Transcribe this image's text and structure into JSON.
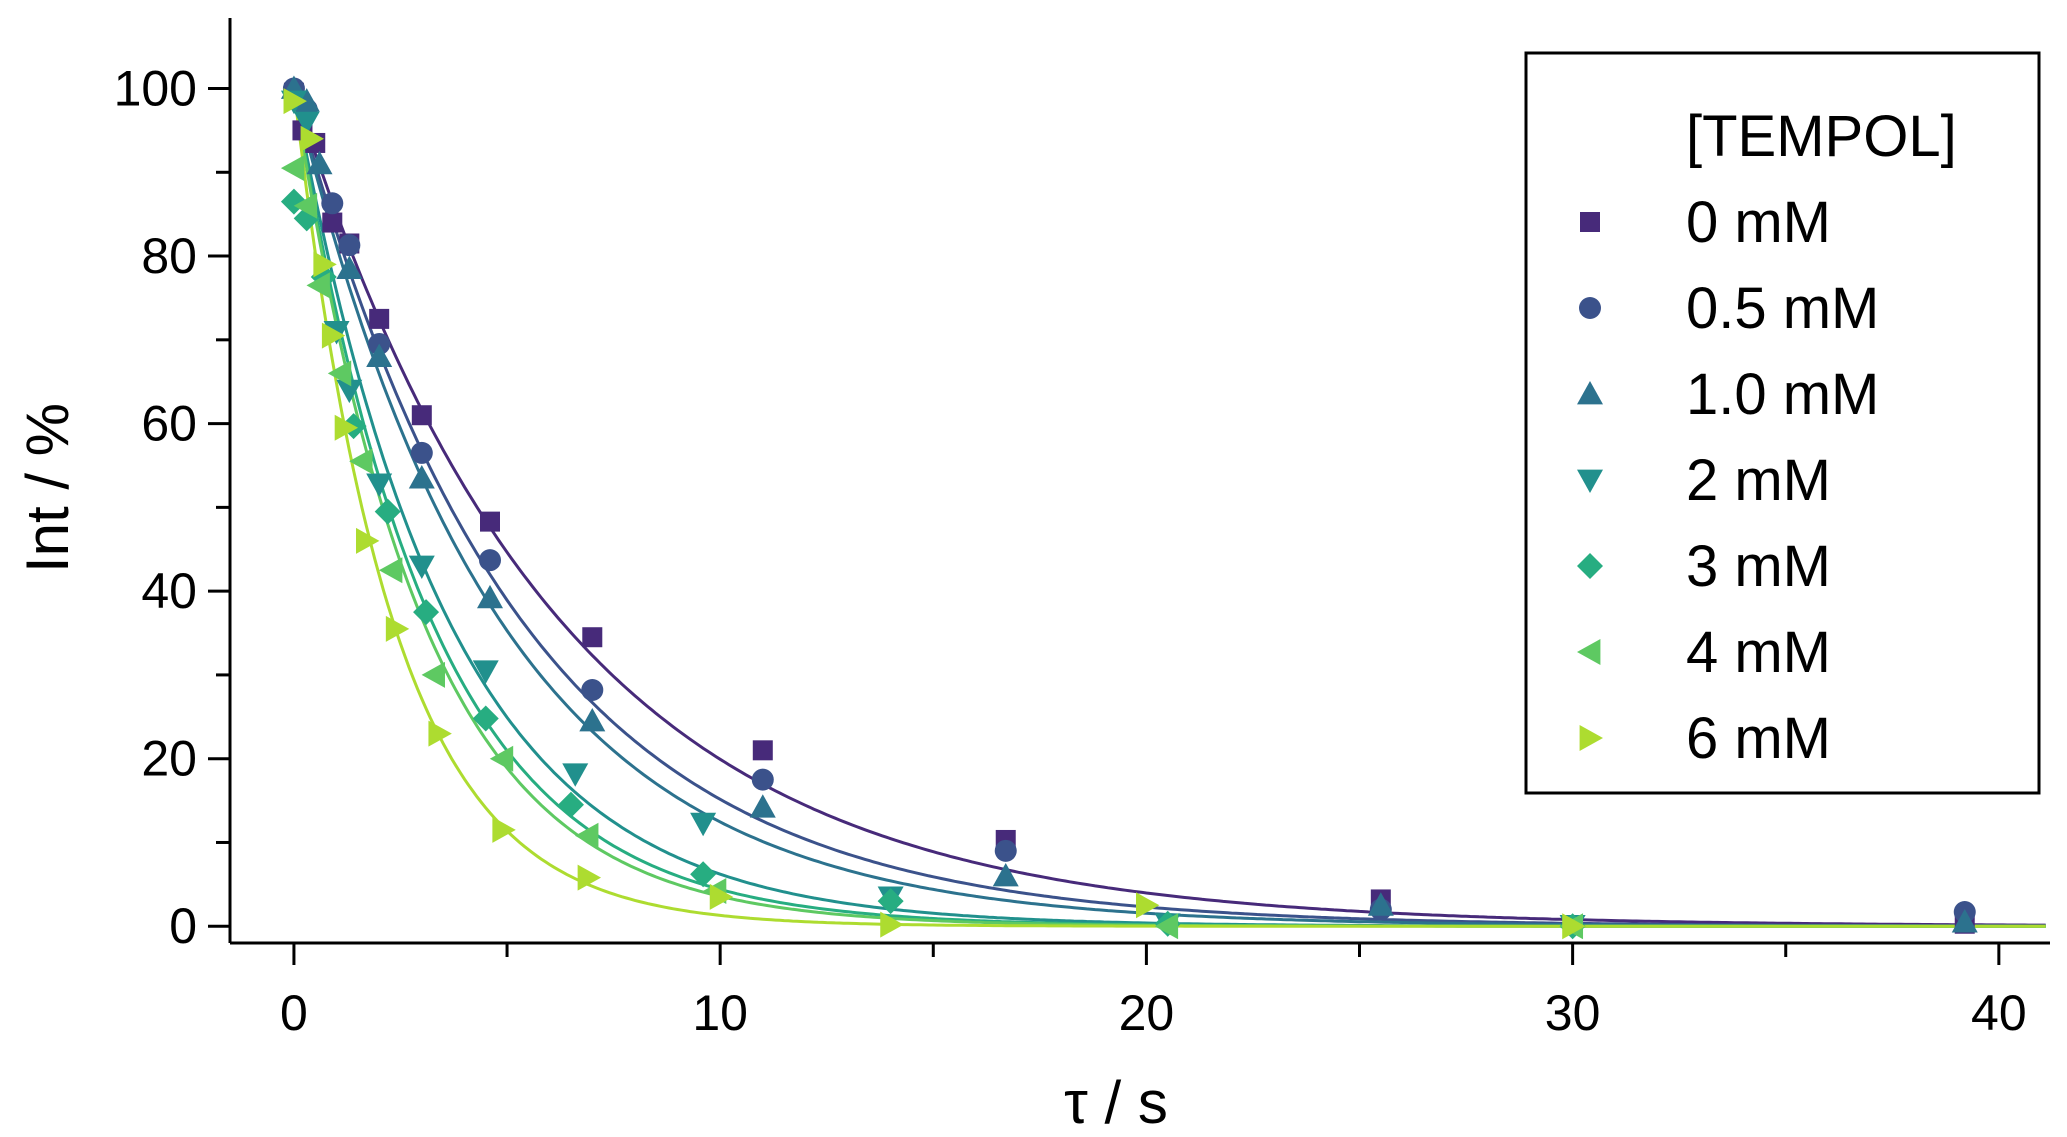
{
  "chart_data": {
    "type": "scatter",
    "xlabel": "τ / s",
    "ylabel": "Int / %",
    "xlim": [
      -1.5,
      41.2
    ],
    "ylim": [
      -2,
      104
    ],
    "x_ticks": [
      0,
      10,
      20,
      30,
      40
    ],
    "y_ticks": [
      0,
      20,
      40,
      60,
      80,
      100
    ],
    "x_tick_labels": [
      "0",
      "10",
      "20",
      "30",
      "40"
    ],
    "y_tick_labels": [
      "0",
      "20",
      "40",
      "60",
      "80",
      "100"
    ],
    "grid": false,
    "legend": {
      "title": "[TEMPOL]",
      "placement": "top-right"
    },
    "fit_curves": "single-exponential decay",
    "series": [
      {
        "name": "0 mM",
        "marker": "square",
        "color": "#472a7a",
        "tau": 6.2,
        "points": [
          [
            0,
            99.5
          ],
          [
            0.2,
            95
          ],
          [
            0.5,
            93.5
          ],
          [
            0.9,
            84
          ],
          [
            1.3,
            81.5
          ],
          [
            2,
            72.5
          ],
          [
            3,
            61
          ],
          [
            4.6,
            48.3
          ],
          [
            7,
            34.5
          ],
          [
            11,
            21
          ],
          [
            16.7,
            10.3
          ],
          [
            25.5,
            3.2
          ],
          [
            39.2,
            0.3
          ]
        ]
      },
      {
        "name": "0.5 mM",
        "marker": "circle",
        "color": "#3b528b",
        "tau": 5.3,
        "points": [
          [
            0,
            100
          ],
          [
            0.3,
            97.5
          ],
          [
            0.9,
            86.3
          ],
          [
            1.3,
            81.3
          ],
          [
            2,
            69.5
          ],
          [
            3,
            56.5
          ],
          [
            4.6,
            43.7
          ],
          [
            7,
            28.2
          ],
          [
            11,
            17.5
          ],
          [
            16.7,
            9
          ],
          [
            25.5,
            2
          ],
          [
            39.2,
            1.7
          ]
        ]
      },
      {
        "name": "1.0 mM",
        "marker": "triangle-up",
        "color": "#2c728e",
        "tau": 4.8,
        "points": [
          [
            0,
            100
          ],
          [
            0.3,
            98.5
          ],
          [
            0.6,
            91
          ],
          [
            1.3,
            78.5
          ],
          [
            2,
            68
          ],
          [
            3,
            53.5
          ],
          [
            4.6,
            39.2
          ],
          [
            7,
            24.5
          ],
          [
            11,
            14.2
          ],
          [
            16.7,
            6
          ],
          [
            25.5,
            2.5
          ],
          [
            39.2,
            0.5
          ]
        ]
      },
      {
        "name": "2 mM",
        "marker": "triangle-down",
        "color": "#21908d",
        "tau": 3.6,
        "points": [
          [
            0,
            98.5
          ],
          [
            0.3,
            96
          ],
          [
            1,
            71
          ],
          [
            1.3,
            64
          ],
          [
            2,
            52.8
          ],
          [
            3,
            43
          ],
          [
            4.5,
            30.5
          ],
          [
            6.6,
            18.2
          ],
          [
            9.6,
            12.3
          ],
          [
            14,
            3.5
          ],
          [
            20.5,
            0.3
          ],
          [
            30,
            0.1
          ]
        ]
      },
      {
        "name": "3 mM",
        "marker": "diamond",
        "color": "#27ad81",
        "tau": 3.2,
        "points": [
          [
            0,
            86.5
          ],
          [
            0.3,
            84.5
          ],
          [
            0.7,
            77.5
          ],
          [
            1.4,
            59.7
          ],
          [
            2.2,
            49.5
          ],
          [
            3.1,
            37.5
          ],
          [
            4.5,
            24.8
          ],
          [
            6.5,
            14.5
          ],
          [
            9.6,
            6.2
          ],
          [
            14,
            3
          ],
          [
            20.5,
            0.3
          ],
          [
            30,
            0
          ]
        ]
      },
      {
        "name": "4 mM",
        "marker": "triangle-left",
        "color": "#5ec962",
        "tau": 3.0,
        "points": [
          [
            0,
            90.5
          ],
          [
            0.3,
            86
          ],
          [
            0.6,
            76.5
          ],
          [
            1.1,
            66
          ],
          [
            1.6,
            55.5
          ],
          [
            2.3,
            42.5
          ],
          [
            3.3,
            30
          ],
          [
            4.9,
            20
          ],
          [
            6.9,
            10.8
          ],
          [
            9.9,
            4.2
          ],
          [
            20.5,
            0
          ],
          [
            30,
            0
          ]
        ]
      },
      {
        "name": "6 mM",
        "marker": "triangle-right",
        "color": "#addc30",
        "tau": 2.3,
        "points": [
          [
            0,
            98.5
          ],
          [
            0.4,
            94
          ],
          [
            0.7,
            79
          ],
          [
            0.9,
            70.5
          ],
          [
            1.2,
            59.5
          ],
          [
            1.7,
            46
          ],
          [
            2.4,
            35.5
          ],
          [
            3.4,
            23
          ],
          [
            4.9,
            11.5
          ],
          [
            6.9,
            5.8
          ],
          [
            10,
            3.5
          ],
          [
            14,
            0.2
          ],
          [
            20,
            2.5
          ],
          [
            30,
            0
          ]
        ]
      }
    ]
  }
}
